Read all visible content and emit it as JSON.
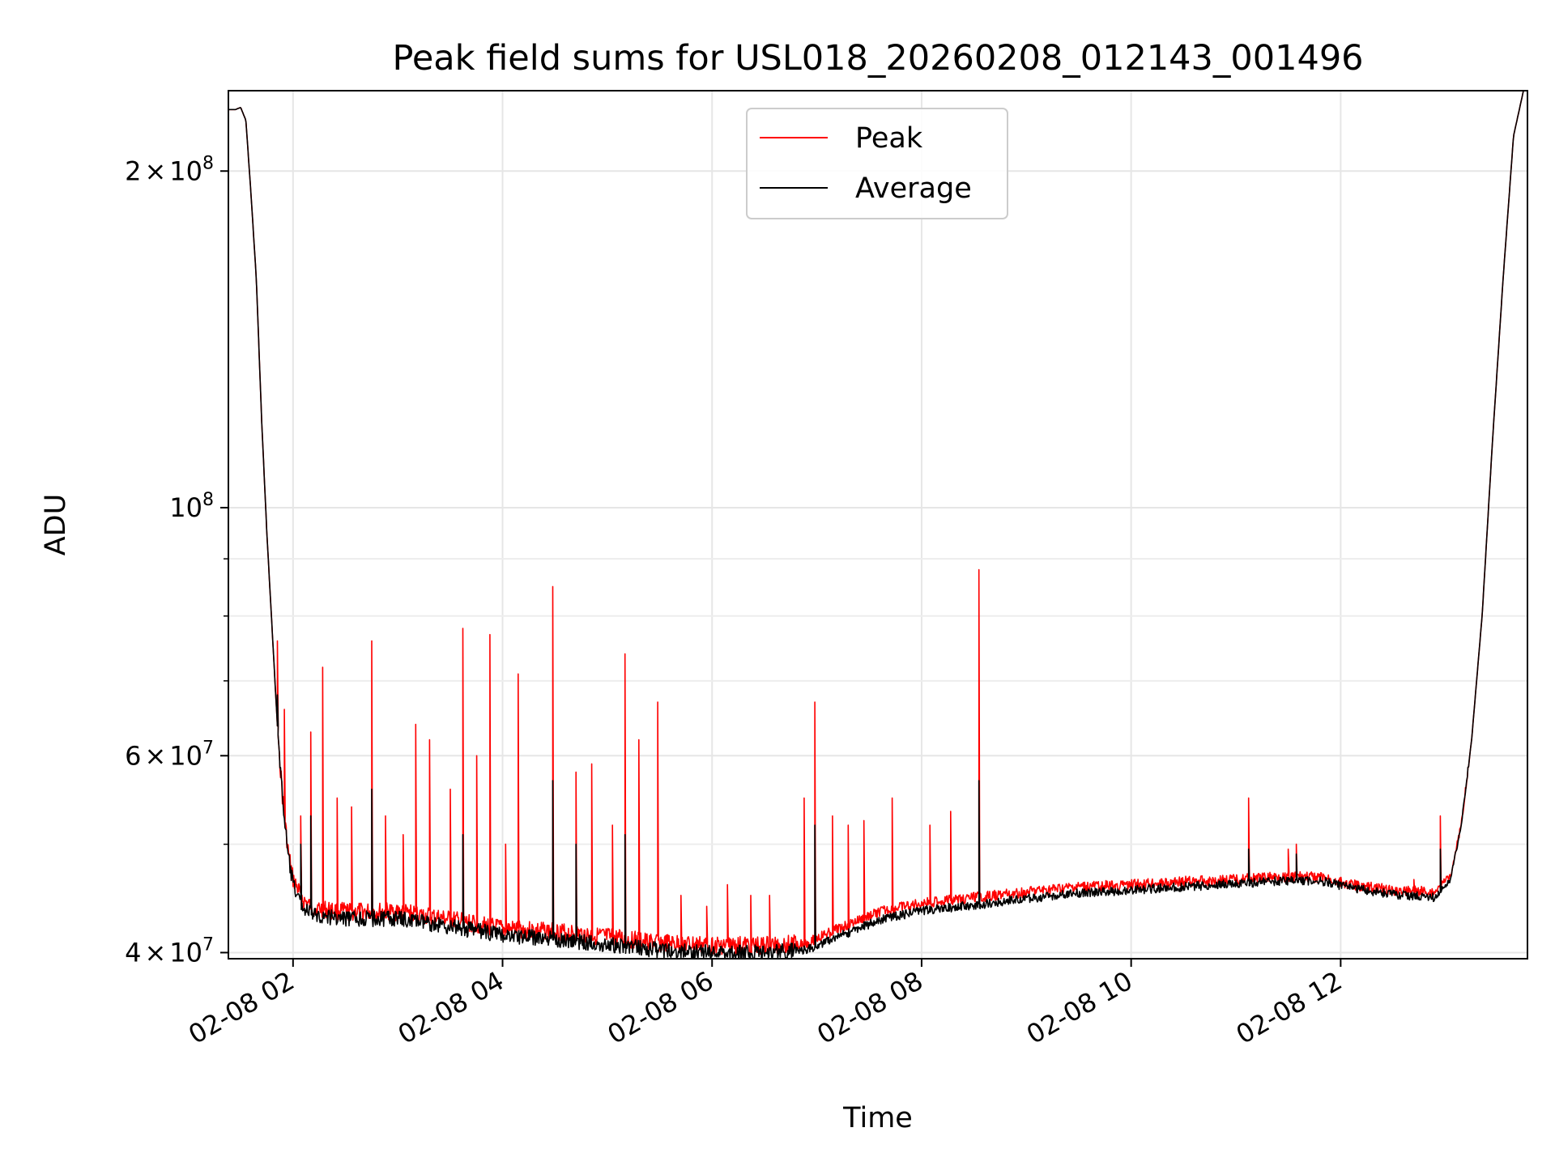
{
  "chart_data": {
    "type": "line",
    "title": "Peak field sums for USL018_20260208_012143_001496",
    "xlabel": "Time",
    "ylabel": "ADU",
    "x_range_hours": [
      1.383,
      13.783
    ],
    "ylim": [
      39500000,
      236000000
    ],
    "y_scale": "log",
    "grid": true,
    "legend_placement": "upper center",
    "x_ticks": [
      {
        "value": 2,
        "label": "02-08 02"
      },
      {
        "value": 4,
        "label": "02-08 04"
      },
      {
        "value": 6,
        "label": "02-08 06"
      },
      {
        "value": 8,
        "label": "02-08 08"
      },
      {
        "value": 10,
        "label": "02-08 10"
      },
      {
        "value": 12,
        "label": "02-08 12"
      }
    ],
    "y_major_ticks": [
      {
        "value": 40000000,
        "mantissa": "4",
        "exponent": "7"
      },
      {
        "value": 60000000,
        "mantissa": "6",
        "exponent": "7"
      },
      {
        "value": 100000000,
        "mantissa": "",
        "exponent": "8"
      },
      {
        "value": 200000000,
        "mantissa": "2",
        "exponent": "8"
      }
    ],
    "y_minor_ticks": [
      50000000,
      70000000,
      80000000,
      90000000
    ],
    "series": [
      {
        "name": "Peak",
        "color": "#ff0000",
        "points": [
          [
            1.383,
            227000000
          ],
          [
            1.45,
            227000000
          ],
          [
            1.5,
            228000000
          ],
          [
            1.55,
            222000000
          ],
          [
            1.6,
            190000000
          ],
          [
            1.65,
            160000000
          ],
          [
            1.7,
            120000000
          ],
          [
            1.75,
            95000000
          ],
          [
            1.8,
            78000000
          ],
          [
            1.85,
            64000000
          ],
          [
            1.9,
            55000000
          ],
          [
            1.95,
            49500000
          ],
          [
            2.0,
            46500000
          ],
          [
            2.1,
            44500000
          ],
          [
            2.2,
            43800000
          ],
          [
            2.5,
            43500000
          ],
          [
            3.0,
            43500000
          ],
          [
            3.5,
            42800000
          ],
          [
            4.0,
            42000000
          ],
          [
            4.5,
            41800000
          ],
          [
            5.0,
            41300000
          ],
          [
            5.5,
            40800000
          ],
          [
            6.0,
            40600000
          ],
          [
            6.5,
            40600000
          ],
          [
            6.9,
            40800000
          ],
          [
            7.2,
            42000000
          ],
          [
            7.6,
            43500000
          ],
          [
            8.0,
            44300000
          ],
          [
            8.5,
            44800000
          ],
          [
            9.0,
            45300000
          ],
          [
            9.5,
            45800000
          ],
          [
            10.0,
            46000000
          ],
          [
            10.5,
            46300000
          ],
          [
            11.0,
            46500000
          ],
          [
            11.5,
            46800000
          ],
          [
            11.8,
            46700000
          ],
          [
            12.1,
            46000000
          ],
          [
            12.5,
            45500000
          ],
          [
            12.9,
            45300000
          ],
          [
            13.05,
            47000000
          ],
          [
            13.15,
            52000000
          ],
          [
            13.25,
            62000000
          ],
          [
            13.35,
            80000000
          ],
          [
            13.45,
            115000000
          ],
          [
            13.55,
            160000000
          ],
          [
            13.65,
            215000000
          ],
          [
            13.783,
            245000000
          ]
        ],
        "spikes": [
          [
            1.85,
            76000000
          ],
          [
            1.92,
            66000000
          ],
          [
            2.07,
            53000000
          ],
          [
            2.17,
            63000000
          ],
          [
            2.28,
            72000000
          ],
          [
            2.42,
            55000000
          ],
          [
            2.56,
            54000000
          ],
          [
            2.75,
            76000000
          ],
          [
            2.88,
            53000000
          ],
          [
            3.05,
            51000000
          ],
          [
            3.17,
            64000000
          ],
          [
            3.3,
            62000000
          ],
          [
            3.5,
            56000000
          ],
          [
            3.62,
            78000000
          ],
          [
            3.75,
            60000000
          ],
          [
            3.88,
            77000000
          ],
          [
            4.03,
            50000000
          ],
          [
            4.15,
            71000000
          ],
          [
            4.48,
            85000000
          ],
          [
            4.7,
            58000000
          ],
          [
            4.85,
            59000000
          ],
          [
            5.05,
            52000000
          ],
          [
            5.17,
            74000000
          ],
          [
            5.3,
            62000000
          ],
          [
            5.48,
            67000000
          ],
          [
            5.7,
            45000000
          ],
          [
            5.95,
            44000000
          ],
          [
            6.15,
            46000000
          ],
          [
            6.37,
            45000000
          ],
          [
            6.55,
            45000000
          ],
          [
            6.88,
            55000000
          ],
          [
            6.98,
            67000000
          ],
          [
            7.15,
            53000000
          ],
          [
            7.3,
            52000000
          ],
          [
            7.45,
            52500000
          ],
          [
            7.72,
            55000000
          ],
          [
            8.08,
            52000000
          ],
          [
            8.28,
            53500000
          ],
          [
            8.55,
            88000000
          ],
          [
            11.12,
            55000000
          ],
          [
            11.5,
            49500000
          ],
          [
            11.58,
            50000000
          ],
          [
            12.7,
            46500000
          ],
          [
            12.95,
            53000000
          ]
        ]
      },
      {
        "name": "Average",
        "color": "#000000",
        "points": [
          [
            1.383,
            227000000
          ],
          [
            1.45,
            227000000
          ],
          [
            1.5,
            228000000
          ],
          [
            1.55,
            222000000
          ],
          [
            1.6,
            190000000
          ],
          [
            1.65,
            160000000
          ],
          [
            1.7,
            120000000
          ],
          [
            1.75,
            95000000
          ],
          [
            1.8,
            78000000
          ],
          [
            1.85,
            64000000
          ],
          [
            1.9,
            55000000
          ],
          [
            1.95,
            49000000
          ],
          [
            2.0,
            46000000
          ],
          [
            2.1,
            43800000
          ],
          [
            2.2,
            43200000
          ],
          [
            2.5,
            42900000
          ],
          [
            3.0,
            42900000
          ],
          [
            3.5,
            42200000
          ],
          [
            4.0,
            41500000
          ],
          [
            4.5,
            41100000
          ],
          [
            5.0,
            40700000
          ],
          [
            5.5,
            40200000
          ],
          [
            6.0,
            40000000
          ],
          [
            6.5,
            40000000
          ],
          [
            6.9,
            40200000
          ],
          [
            7.2,
            41300000
          ],
          [
            7.6,
            42800000
          ],
          [
            8.0,
            43600000
          ],
          [
            8.5,
            44100000
          ],
          [
            9.0,
            44700000
          ],
          [
            9.5,
            45200000
          ],
          [
            10.0,
            45500000
          ],
          [
            10.5,
            45800000
          ],
          [
            11.0,
            46100000
          ],
          [
            11.5,
            46400000
          ],
          [
            11.8,
            46400000
          ],
          [
            12.1,
            45700000
          ],
          [
            12.5,
            45100000
          ],
          [
            12.9,
            44800000
          ],
          [
            13.05,
            46500000
          ],
          [
            13.15,
            52000000
          ],
          [
            13.25,
            62000000
          ],
          [
            13.35,
            80000000
          ],
          [
            13.45,
            115000000
          ],
          [
            13.55,
            160000000
          ],
          [
            13.65,
            215000000
          ],
          [
            13.783,
            245000000
          ]
        ],
        "spikes": [
          [
            1.85,
            68000000
          ],
          [
            2.07,
            50000000
          ],
          [
            2.17,
            53000000
          ],
          [
            2.75,
            56000000
          ],
          [
            3.62,
            51000000
          ],
          [
            4.48,
            57000000
          ],
          [
            4.7,
            50000000
          ],
          [
            5.17,
            51000000
          ],
          [
            6.98,
            52000000
          ],
          [
            8.55,
            57000000
          ],
          [
            11.12,
            49500000
          ],
          [
            11.58,
            49000000
          ],
          [
            12.95,
            49500000
          ]
        ]
      }
    ]
  }
}
